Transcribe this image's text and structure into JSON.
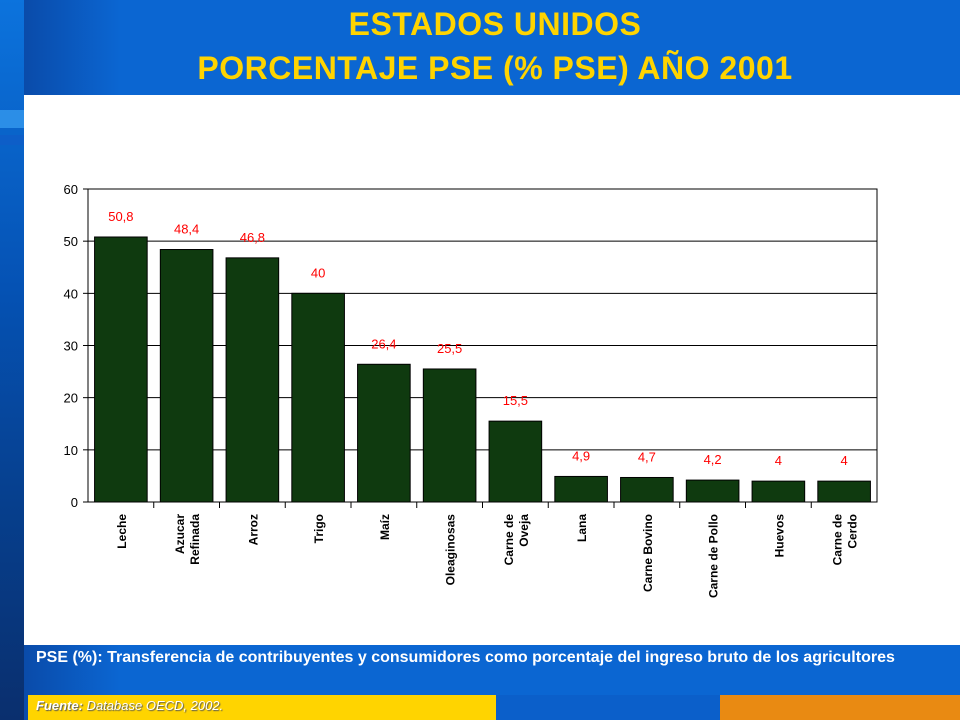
{
  "title_line1": "ESTADOS UNIDOS",
  "title_line2": "PORCENTAJE PSE (% PSE)  AÑO 2001",
  "note": "PSE (%): Transferencia de contribuyentes y consumidores como porcentaje del ingreso bruto de los agricultores",
  "source_label": "Fuente:",
  "source_text": " Database OECD, 2002.",
  "colors": {
    "bar": "#0f3a0f",
    "label": "#ff0000",
    "title": "#ffd400"
  },
  "chart_data": {
    "type": "bar",
    "title": "",
    "xlabel": "",
    "ylabel": "",
    "ylim": [
      0,
      60
    ],
    "yticks": [
      0,
      10,
      20,
      30,
      40,
      50,
      60
    ],
    "grid": true,
    "categories": [
      [
        "Leche"
      ],
      [
        "Azucar",
        "Refinada"
      ],
      [
        "Arroz"
      ],
      [
        "Trigo"
      ],
      [
        "Maíz"
      ],
      [
        "Oleaginosas"
      ],
      [
        "Carne de",
        "Oveja"
      ],
      [
        "Lana"
      ],
      [
        "Carne Bovino"
      ],
      [
        "Carne de Pollo"
      ],
      [
        "Huevos"
      ],
      [
        "Carne de",
        "Cerdo"
      ]
    ],
    "values": [
      50.8,
      48.4,
      46.8,
      40,
      26.4,
      25.5,
      15.5,
      4.9,
      4.7,
      4.2,
      4,
      4
    ],
    "value_labels": [
      "50,8",
      "48,4",
      "46,8",
      "40",
      "26,4",
      "25,5",
      "15,5",
      "4,9",
      "4,7",
      "4,2",
      "4",
      "4"
    ]
  }
}
